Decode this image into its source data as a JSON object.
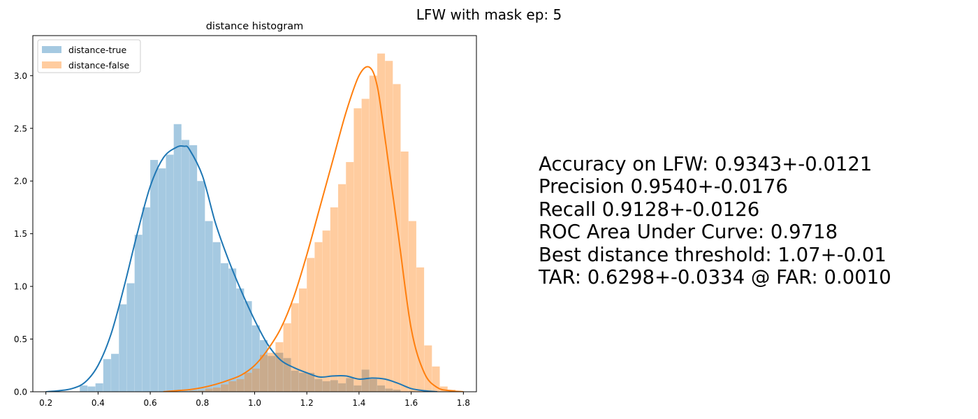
{
  "figure": {
    "suptitle": "LFW with mask ep: 5"
  },
  "stats": {
    "lines": [
      "Accuracy on LFW: 0.9343+-0.0121",
      "Precision 0.9540+-0.0176",
      "Recall 0.9128+-0.0126",
      "ROC Area Under Curve: 0.9718",
      "Best distance threshold: 1.07+-0.01",
      "TAR: 0.6298+-0.0334 @ FAR: 0.0010"
    ]
  },
  "colors": {
    "true": "#1f77b4",
    "false": "#ff7f0e",
    "true_fill": "#a6c8e1",
    "false_fill": "#ffc89b",
    "overlap_fill": "#c0a68a"
  },
  "chart_data": {
    "type": "histogram",
    "title": "distance histogram",
    "xlabel": "",
    "ylabel": "",
    "xlim": [
      0.15,
      1.85
    ],
    "ylim": [
      0,
      3.38
    ],
    "xticks": [
      0.2,
      0.4,
      0.6,
      0.8,
      1.0,
      1.2,
      1.4,
      1.6,
      1.8
    ],
    "xtick_labels": [
      "0.2",
      "0.4",
      "0.6",
      "0.8",
      "1.0",
      "1.2",
      "1.4",
      "1.6",
      "1.8"
    ],
    "yticks": [
      0.0,
      0.5,
      1.0,
      1.5,
      2.0,
      2.5,
      3.0
    ],
    "ytick_labels": [
      "0.0",
      "0.5",
      "1.0",
      "1.5",
      "2.0",
      "2.5",
      "3.0"
    ],
    "grid": false,
    "legend": "upper-left",
    "series": [
      {
        "name": "distance-true",
        "bin_width": 0.0295,
        "bins": [
          [
            0.33,
            0.06
          ],
          [
            0.36,
            0.05
          ],
          [
            0.39,
            0.08
          ],
          [
            0.42,
            0.31
          ],
          [
            0.45,
            0.36
          ],
          [
            0.48,
            0.83
          ],
          [
            0.51,
            1.03
          ],
          [
            0.54,
            1.49
          ],
          [
            0.57,
            1.75
          ],
          [
            0.6,
            2.2
          ],
          [
            0.63,
            2.12
          ],
          [
            0.66,
            2.25
          ],
          [
            0.69,
            2.54
          ],
          [
            0.72,
            2.39
          ],
          [
            0.75,
            2.34
          ],
          [
            0.78,
            2.0
          ],
          [
            0.81,
            1.62
          ],
          [
            0.84,
            1.42
          ],
          [
            0.87,
            1.22
          ],
          [
            0.9,
            1.17
          ],
          [
            0.93,
            0.98
          ],
          [
            0.96,
            0.86
          ],
          [
            0.99,
            0.63
          ],
          [
            1.02,
            0.49
          ],
          [
            1.05,
            0.34
          ],
          [
            1.08,
            0.37
          ],
          [
            1.11,
            0.32
          ],
          [
            1.14,
            0.2
          ],
          [
            1.17,
            0.18
          ],
          [
            1.2,
            0.18
          ],
          [
            1.23,
            0.12
          ],
          [
            1.26,
            0.1
          ],
          [
            1.29,
            0.11
          ],
          [
            1.32,
            0.08
          ],
          [
            1.35,
            0.13
          ],
          [
            1.38,
            0.06
          ],
          [
            1.41,
            0.21
          ],
          [
            1.44,
            0.12
          ],
          [
            1.47,
            0.06
          ],
          [
            1.5,
            0.03
          ],
          [
            1.53,
            0.02
          ]
        ],
        "kde": [
          [
            0.2,
            0.0
          ],
          [
            0.25,
            0.01
          ],
          [
            0.3,
            0.03
          ],
          [
            0.35,
            0.09
          ],
          [
            0.4,
            0.25
          ],
          [
            0.45,
            0.55
          ],
          [
            0.5,
            1.0
          ],
          [
            0.55,
            1.5
          ],
          [
            0.6,
            1.95
          ],
          [
            0.65,
            2.22
          ],
          [
            0.7,
            2.32
          ],
          [
            0.73,
            2.33
          ],
          [
            0.75,
            2.3
          ],
          [
            0.8,
            2.05
          ],
          [
            0.85,
            1.6
          ],
          [
            0.9,
            1.25
          ],
          [
            0.95,
            0.95
          ],
          [
            1.0,
            0.68
          ],
          [
            1.05,
            0.45
          ],
          [
            1.1,
            0.3
          ],
          [
            1.15,
            0.23
          ],
          [
            1.2,
            0.18
          ],
          [
            1.25,
            0.14
          ],
          [
            1.3,
            0.15
          ],
          [
            1.35,
            0.15
          ],
          [
            1.4,
            0.12
          ],
          [
            1.45,
            0.13
          ],
          [
            1.5,
            0.12
          ],
          [
            1.55,
            0.08
          ],
          [
            1.6,
            0.03
          ],
          [
            1.65,
            0.01
          ],
          [
            1.7,
            0.0
          ]
        ]
      },
      {
        "name": "distance-false",
        "bin_width": 0.0295,
        "bins": [
          [
            0.75,
            0.01
          ],
          [
            0.78,
            0.01
          ],
          [
            0.81,
            0.03
          ],
          [
            0.84,
            0.04
          ],
          [
            0.87,
            0.07
          ],
          [
            0.9,
            0.1
          ],
          [
            0.93,
            0.12
          ],
          [
            0.96,
            0.18
          ],
          [
            0.99,
            0.22
          ],
          [
            1.02,
            0.35
          ],
          [
            1.05,
            0.37
          ],
          [
            1.08,
            0.47
          ],
          [
            1.11,
            0.65
          ],
          [
            1.14,
            0.84
          ],
          [
            1.17,
            0.98
          ],
          [
            1.2,
            1.27
          ],
          [
            1.23,
            1.42
          ],
          [
            1.26,
            1.53
          ],
          [
            1.29,
            1.75
          ],
          [
            1.32,
            1.97
          ],
          [
            1.35,
            2.18
          ],
          [
            1.38,
            2.69
          ],
          [
            1.41,
            2.78
          ],
          [
            1.44,
            3.0
          ],
          [
            1.47,
            3.21
          ],
          [
            1.5,
            3.14
          ],
          [
            1.53,
            2.92
          ],
          [
            1.56,
            2.28
          ],
          [
            1.59,
            1.62
          ],
          [
            1.62,
            1.18
          ],
          [
            1.65,
            0.44
          ],
          [
            1.68,
            0.24
          ],
          [
            1.71,
            0.05
          ],
          [
            1.74,
            0.02
          ]
        ],
        "kde": [
          [
            0.65,
            0.0
          ],
          [
            0.7,
            0.01
          ],
          [
            0.75,
            0.02
          ],
          [
            0.8,
            0.04
          ],
          [
            0.85,
            0.07
          ],
          [
            0.9,
            0.11
          ],
          [
            0.95,
            0.16
          ],
          [
            1.0,
            0.25
          ],
          [
            1.05,
            0.4
          ],
          [
            1.1,
            0.6
          ],
          [
            1.15,
            0.9
          ],
          [
            1.2,
            1.3
          ],
          [
            1.25,
            1.75
          ],
          [
            1.3,
            2.2
          ],
          [
            1.35,
            2.65
          ],
          [
            1.4,
            3.0
          ],
          [
            1.44,
            3.08
          ],
          [
            1.47,
            2.9
          ],
          [
            1.5,
            2.4
          ],
          [
            1.55,
            1.5
          ],
          [
            1.6,
            0.6
          ],
          [
            1.65,
            0.18
          ],
          [
            1.7,
            0.04
          ],
          [
            1.75,
            0.01
          ],
          [
            1.8,
            0.0
          ]
        ]
      }
    ]
  }
}
